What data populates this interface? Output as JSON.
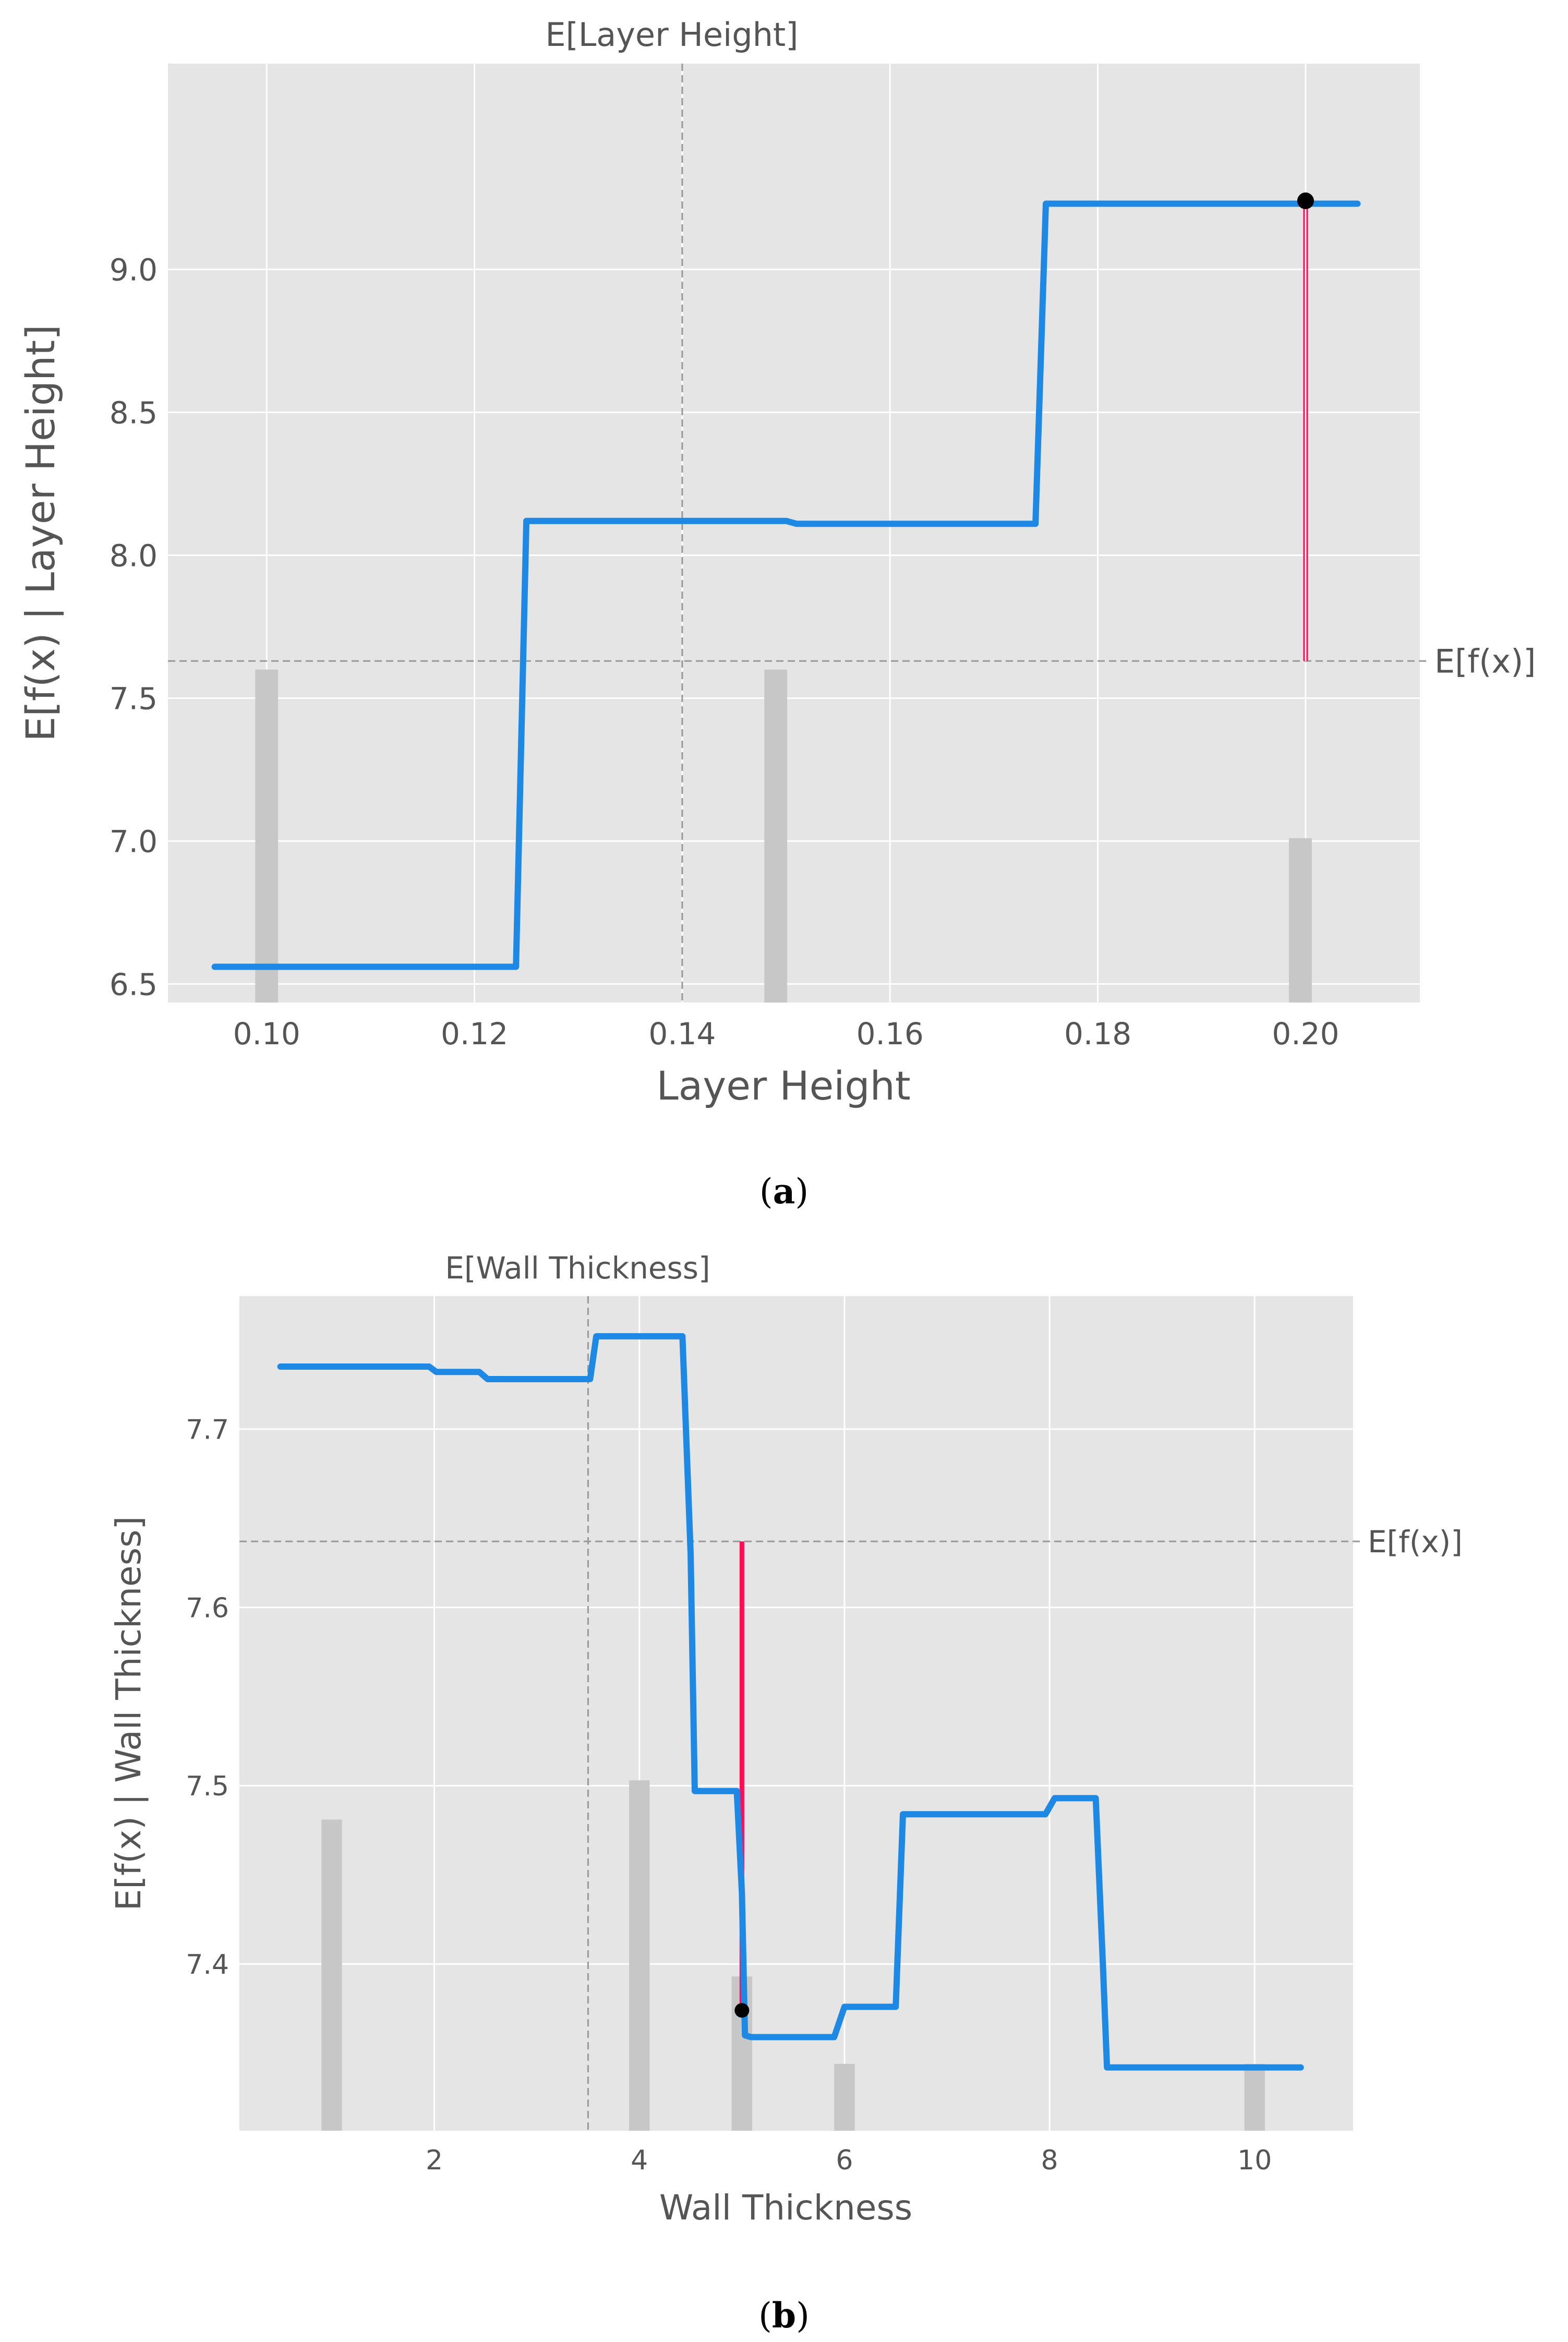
{
  "figure": {
    "captions": [
      "a",
      "b"
    ]
  },
  "colors": {
    "panel_bg": "#e5e5e5",
    "grid": "#ffffff",
    "curve": "#1e88e5",
    "highlight": "#ff0d57",
    "hist": "#c7c7c7",
    "marker": "#000000",
    "ref_line": "#999999",
    "text": "#555555"
  },
  "chart_data": [
    {
      "type": "line",
      "top_label": "E[Layer Height]",
      "xlabel": "Layer Height",
      "ylabel": "E[f(x) | Layer Height]",
      "expected_value_label": "E[f(x)]",
      "xlim": [
        0.0905,
        0.211
      ],
      "ylim": [
        6.435,
        9.72
      ],
      "xticks": [
        0.1,
        0.12,
        0.14,
        0.16,
        0.18,
        0.2
      ],
      "xtick_labels": [
        "0.10",
        "0.12",
        "0.14",
        "0.16",
        "0.18",
        "0.20"
      ],
      "yticks": [
        6.5,
        7.0,
        7.5,
        8.0,
        8.5,
        9.0
      ],
      "ytick_labels": [
        "6.5",
        "7.0",
        "7.5",
        "8.0",
        "8.5",
        "9.0"
      ],
      "expected_value": 7.63,
      "feature_mean": 0.14,
      "series": [
        {
          "x": [
            0.095,
            0.124,
            0.125,
            0.15,
            0.151,
            0.174,
            0.175,
            0.205
          ],
          "y": [
            6.56,
            6.56,
            8.12,
            8.12,
            8.11,
            8.11,
            9.23,
            9.23
          ]
        }
      ],
      "instance": {
        "x": 0.2,
        "y": 9.24
      },
      "contribution": {
        "x": 0.2,
        "from": 7.63,
        "to": 9.24
      },
      "histogram": [
        {
          "x": 0.1,
          "height": 7.6
        },
        {
          "x": 0.149,
          "height": 7.6
        },
        {
          "x": 0.1995,
          "height": 7.01
        }
      ],
      "hist_bar_width": 0.0022
    },
    {
      "type": "line",
      "top_label": "E[Wall Thickness]",
      "xlabel": "Wall Thickness",
      "ylabel": "E[f(x) | Wall Thickness]",
      "expected_value_label": "E[f(x)]",
      "xlim": [
        0.1,
        10.96
      ],
      "ylim": [
        7.3065,
        7.7745
      ],
      "xticks": [
        2,
        4,
        6,
        8,
        10
      ],
      "xtick_labels": [
        "2",
        "4",
        "6",
        "8",
        "10"
      ],
      "yticks": [
        7.4,
        7.5,
        7.6,
        7.7
      ],
      "ytick_labels": [
        "7.4",
        "7.5",
        "7.6",
        "7.7"
      ],
      "expected_value": 7.637,
      "feature_mean": 3.5,
      "series": [
        {
          "x": [
            0.5,
            1.95,
            2.02,
            2.44,
            2.52,
            2.92,
            3.0,
            3.4,
            3.45,
            3.52,
            3.58,
            3.68,
            4.42,
            4.5,
            4.54,
            4.95,
            5.0,
            5.03,
            5.09,
            5.9,
            6.0,
            6.44,
            6.5,
            6.57,
            7.96,
            8.05,
            8.45,
            8.52,
            8.56,
            10.45
          ],
          "y": [
            7.735,
            7.735,
            7.732,
            7.732,
            7.728,
            7.728,
            7.728,
            7.728,
            7.728,
            7.728,
            7.752,
            7.752,
            7.752,
            7.63,
            7.497,
            7.497,
            7.44,
            7.36,
            7.359,
            7.359,
            7.376,
            7.376,
            7.376,
            7.484,
            7.484,
            7.493,
            7.493,
            7.4,
            7.342,
            7.342
          ]
        }
      ],
      "instance": {
        "x": 5.0,
        "y": 7.374
      },
      "contribution": {
        "x": 5.0,
        "from": 7.637,
        "to": 7.374
      },
      "histogram": [
        {
          "x": 1.0,
          "height": 7.481
        },
        {
          "x": 4.0,
          "height": 7.503
        },
        {
          "x": 5.0,
          "height": 7.393
        },
        {
          "x": 6.0,
          "height": 7.344
        },
        {
          "x": 10.0,
          "height": 7.344
        }
      ],
      "hist_bar_width": 0.2
    }
  ]
}
